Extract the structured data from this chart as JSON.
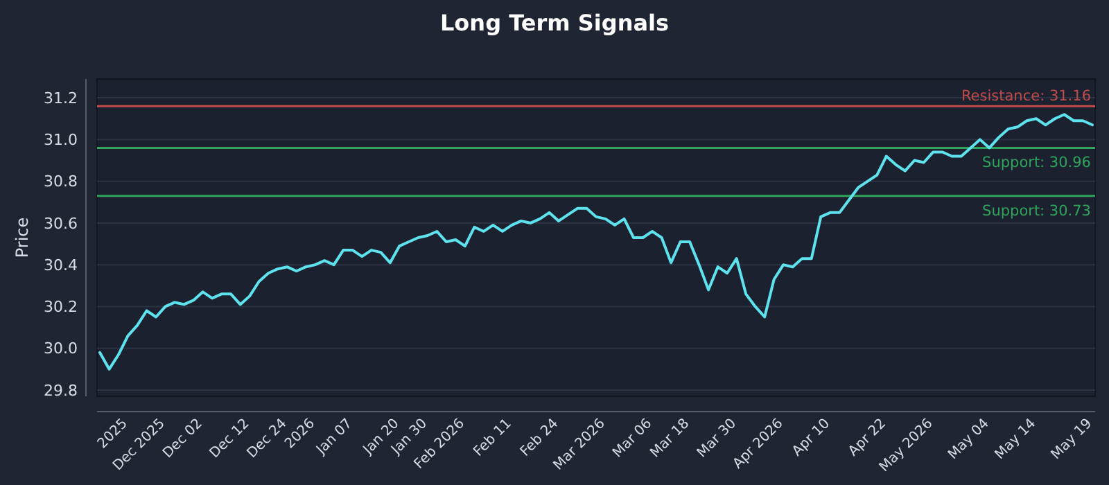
{
  "chart_data": {
    "type": "line",
    "title": "Long Term Signals",
    "ylabel": "Price",
    "categories": [
      null,
      null,
      null,
      "2025",
      null,
      null,
      null,
      "Dec 2025",
      null,
      null,
      null,
      "Dec 02",
      null,
      null,
      null,
      null,
      "Dec 12",
      null,
      null,
      null,
      "Dec 24",
      null,
      null,
      "2026",
      null,
      null,
      null,
      "Jan 07",
      null,
      null,
      null,
      null,
      "Jan 20",
      null,
      null,
      "Jan 30",
      null,
      null,
      null,
      "Feb 2026",
      null,
      null,
      null,
      null,
      "Feb 11",
      null,
      null,
      null,
      null,
      "Feb 24",
      null,
      null,
      null,
      null,
      "Mar 2026",
      null,
      null,
      null,
      null,
      "Mar 06",
      null,
      null,
      null,
      "Mar 18",
      null,
      null,
      null,
      null,
      "Mar 30",
      null,
      null,
      null,
      null,
      "Apr 2026",
      null,
      null,
      null,
      null,
      "Apr 10",
      null,
      null,
      null,
      null,
      null,
      "Apr 22",
      null,
      null,
      null,
      null,
      "May 2026",
      null,
      null,
      null,
      null,
      null,
      "May 04",
      null,
      null,
      null,
      null,
      "May 14",
      null,
      null,
      null,
      null,
      null,
      "May 19"
    ],
    "series": [
      {
        "color": "#5ee3ee",
        "values": [
          29.98,
          29.9,
          29.97,
          30.06,
          30.11,
          30.18,
          30.15,
          30.2,
          30.22,
          30.21,
          30.23,
          30.27,
          30.24,
          30.26,
          30.26,
          30.21,
          30.25,
          30.32,
          30.36,
          30.38,
          30.39,
          30.37,
          30.39,
          30.4,
          30.42,
          30.4,
          30.47,
          30.47,
          30.44,
          30.47,
          30.46,
          30.41,
          30.49,
          30.51,
          30.53,
          30.54,
          30.56,
          30.51,
          30.52,
          30.49,
          30.58,
          30.56,
          30.59,
          30.56,
          30.59,
          30.61,
          30.6,
          30.62,
          30.65,
          30.61,
          30.64,
          30.67,
          30.67,
          30.63,
          30.62,
          30.59,
          30.62,
          30.53,
          30.53,
          30.56,
          30.53,
          30.41,
          30.51,
          30.51,
          30.4,
          30.28,
          30.39,
          30.36,
          30.43,
          30.26,
          30.2,
          30.15,
          30.33,
          30.4,
          30.39,
          30.43,
          30.43,
          30.63,
          30.65,
          30.65,
          30.71,
          30.77,
          30.8,
          30.83,
          30.92,
          30.88,
          30.85,
          30.9,
          30.89,
          30.94,
          30.94,
          30.92,
          30.92,
          30.96,
          31.0,
          30.96,
          31.01,
          31.05,
          31.06,
          31.09,
          31.1,
          31.07,
          31.1,
          31.12,
          31.09,
          31.09,
          31.07
        ]
      }
    ],
    "ylim": [
      29.77,
      31.29
    ],
    "yticks": [
      29.8,
      {
        "value": 30,
        "label": "30.0"
      },
      30.2,
      30.4,
      30.6,
      30.8,
      {
        "value": 31,
        "label": "31.0"
      },
      31.2
    ],
    "grid": "y",
    "line_style": "solid",
    "marker": "none",
    "ref_lines": [
      {
        "axis": "y",
        "value": 31.16,
        "label": "Resistance: 31.16",
        "color": "#c24b4b"
      },
      {
        "axis": "y",
        "value": 30.96,
        "label": "Support: 30.96",
        "color": "#2ea55a"
      },
      {
        "axis": "y",
        "value": 30.73,
        "label": "Support: 30.73",
        "color": "#2ea55a"
      }
    ]
  }
}
